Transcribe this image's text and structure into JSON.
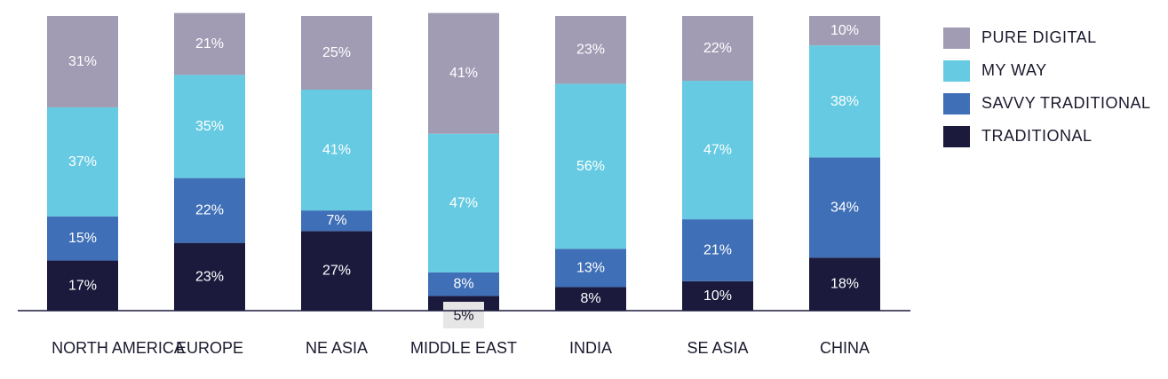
{
  "chart_data": {
    "type": "bar",
    "stacked": true,
    "categories": [
      "NORTH AMERICA",
      "EUROPE",
      "NE ASIA",
      "MIDDLE EAST",
      "INDIA",
      "SE ASIA",
      "CHINA"
    ],
    "series": [
      {
        "name": "TRADITIONAL",
        "color": "#1b1a3d",
        "values": [
          17,
          23,
          27,
          5,
          8,
          10,
          18
        ]
      },
      {
        "name": "SAVVY TRADITIONAL",
        "color": "#3f6fb7",
        "values": [
          15,
          22,
          7,
          8,
          13,
          21,
          34
        ]
      },
      {
        "name": "MY WAY",
        "color": "#66cbe2",
        "values": [
          37,
          35,
          41,
          47,
          56,
          47,
          38
        ]
      },
      {
        "name": "PURE DIGITAL",
        "color": "#a19cb4",
        "values": [
          31,
          21,
          25,
          41,
          23,
          22,
          10
        ]
      }
    ],
    "value_suffix": "%",
    "legend_order": [
      "PURE DIGITAL",
      "MY WAY",
      "SAVVY TRADITIONAL",
      "TRADITIONAL"
    ],
    "legend_position": "right",
    "ylim": [
      0,
      100
    ],
    "grid": false,
    "small_value_callout_color": "#e6e6e6"
  }
}
